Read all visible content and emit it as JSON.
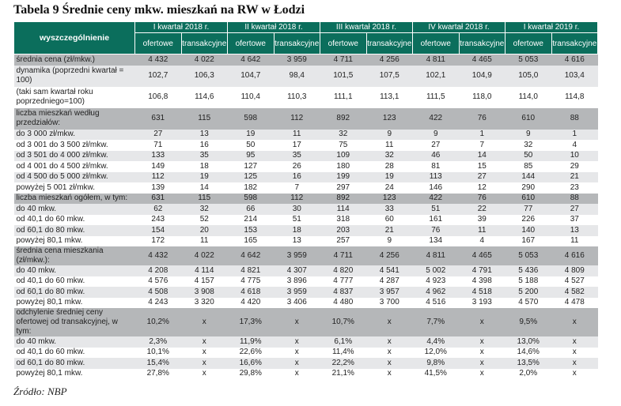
{
  "title": "Tabela 9 Średnie ceny mkw. mieszkań na RW w Łodzi",
  "header": {
    "label": "wyszczególnienie",
    "quarters": [
      "I kwartał 2018 r.",
      "II kwartał 2018 r.",
      "III kwartał 2018 r.",
      "IV kwartał 2018 r.",
      "I kwartał 2019 r."
    ],
    "sub": [
      "ofertowe",
      "transakcyjne"
    ]
  },
  "rows": [
    {
      "label": "średnia cena (zł/mkw.)",
      "style": "dark",
      "values": [
        "4 432",
        "4 022",
        "4 642",
        "3 959",
        "4 711",
        "4 256",
        "4 811",
        "4 465",
        "5 053",
        "4 616"
      ]
    },
    {
      "label": "dynamika (poprzedni kwartał = 100)",
      "style": "light",
      "dbl": true,
      "values": [
        "102,7",
        "106,3",
        "104,7",
        "98,4",
        "101,5",
        "107,5",
        "102,1",
        "104,9",
        "105,0",
        "103,4"
      ]
    },
    {
      "label": "(taki sam kwartał roku poprzedniego=100)",
      "style": "white",
      "dbl": true,
      "values": [
        "106,8",
        "114,6",
        "110,4",
        "110,3",
        "111,1",
        "113,1",
        "111,5",
        "118,0",
        "114,0",
        "114,8"
      ]
    },
    {
      "label": "liczba mieszkań według przedziałów:",
      "style": "dark",
      "dbl": true,
      "values": [
        "631",
        "115",
        "598",
        "112",
        "892",
        "123",
        "422",
        "76",
        "610",
        "88"
      ]
    },
    {
      "label": "do 3 000 zł/mkw.",
      "style": "light",
      "values": [
        "27",
        "13",
        "19",
        "11",
        "32",
        "9",
        "9",
        "1",
        "9",
        "1"
      ]
    },
    {
      "label": "od 3 001 do 3 500 zł/mkw.",
      "style": "white",
      "values": [
        "71",
        "16",
        "50",
        "17",
        "75",
        "11",
        "27",
        "7",
        "32",
        "4"
      ]
    },
    {
      "label": "od 3 501 do 4 000 zł/mkw.",
      "style": "light",
      "values": [
        "133",
        "35",
        "95",
        "35",
        "109",
        "32",
        "46",
        "14",
        "50",
        "10"
      ]
    },
    {
      "label": "od 4 001 do 4 500 zł/mkw.",
      "style": "white",
      "values": [
        "149",
        "18",
        "127",
        "26",
        "180",
        "28",
        "81",
        "15",
        "85",
        "29"
      ]
    },
    {
      "label": "od 4 500 do 5 000 zł/mkw.",
      "style": "light",
      "values": [
        "112",
        "19",
        "125",
        "16",
        "199",
        "19",
        "113",
        "27",
        "144",
        "21"
      ]
    },
    {
      "label": "powyżej 5 001 zł/mkw.",
      "style": "white",
      "values": [
        "139",
        "14",
        "182",
        "7",
        "297",
        "24",
        "146",
        "12",
        "290",
        "23"
      ]
    },
    {
      "label": "liczba mieszkań ogółem, w tym:",
      "style": "dark",
      "values": [
        "631",
        "115",
        "598",
        "112",
        "892",
        "123",
        "422",
        "76",
        "610",
        "88"
      ]
    },
    {
      "label": "do 40 mkw.",
      "style": "light",
      "values": [
        "62",
        "32",
        "66",
        "30",
        "114",
        "33",
        "51",
        "22",
        "77",
        "27"
      ]
    },
    {
      "label": "od 40,1 do 60 mkw.",
      "style": "white",
      "values": [
        "243",
        "52",
        "214",
        "51",
        "318",
        "60",
        "161",
        "39",
        "226",
        "37"
      ]
    },
    {
      "label": "od 60,1 do 80 mkw.",
      "style": "light",
      "values": [
        "154",
        "20",
        "153",
        "18",
        "203",
        "21",
        "76",
        "11",
        "140",
        "13"
      ]
    },
    {
      "label": "powyżej 80,1 mkw.",
      "style": "white",
      "values": [
        "172",
        "11",
        "165",
        "13",
        "257",
        "9",
        "134",
        "4",
        "167",
        "11"
      ]
    },
    {
      "label": "średnia cena mieszkania (zł/mkw.):",
      "style": "dark",
      "values": [
        "4 432",
        "4 022",
        "4 642",
        "3 959",
        "4 711",
        "4 256",
        "4 811",
        "4 465",
        "5 053",
        "4 616"
      ]
    },
    {
      "label": "do 40 mkw.",
      "style": "light",
      "values": [
        "4 208",
        "4 114",
        "4 821",
        "4 307",
        "4 820",
        "4 541",
        "5 002",
        "4 791",
        "5 436",
        "4 809"
      ]
    },
    {
      "label": "od 40,1 do 60 mkw.",
      "style": "white",
      "values": [
        "4 576",
        "4 157",
        "4 775",
        "3 896",
        "4 777",
        "4 287",
        "4 923",
        "4 398",
        "5 188",
        "4 527"
      ]
    },
    {
      "label": "od 60,1 do 80 mkw.",
      "style": "light",
      "values": [
        "4 508",
        "3 908",
        "4 618",
        "3 959",
        "4 837",
        "3 957",
        "4 962",
        "4 518",
        "5 200",
        "4 582"
      ]
    },
    {
      "label": "powyżej 80,1 mkw.",
      "style": "white",
      "values": [
        "4 243",
        "3 320",
        "4 420",
        "3 406",
        "4 480",
        "3 700",
        "4 516",
        "3 193",
        "4 570",
        "4 478"
      ]
    },
    {
      "label": "odchylenie średniej ceny ofertowej od transakcyjnej, w tym:",
      "style": "dark",
      "dbl": true,
      "values": [
        "10,2%",
        "x",
        "17,3%",
        "x",
        "10,7%",
        "x",
        "7,7%",
        "x",
        "9,5%",
        "x"
      ]
    },
    {
      "label": "do 40 mkw.",
      "style": "light",
      "values": [
        "2,3%",
        "x",
        "11,9%",
        "x",
        "6,1%",
        "x",
        "4,4%",
        "x",
        "13,0%",
        "x"
      ]
    },
    {
      "label": "od 40,1 do 60 mkw.",
      "style": "white",
      "values": [
        "10,1%",
        "x",
        "22,6%",
        "x",
        "11,4%",
        "x",
        "12,0%",
        "x",
        "14,6%",
        "x"
      ]
    },
    {
      "label": "od 60,1 do 80 mkw.",
      "style": "light",
      "values": [
        "15,4%",
        "x",
        "16,6%",
        "x",
        "22,2%",
        "x",
        "9,8%",
        "x",
        "13,5%",
        "x"
      ]
    },
    {
      "label": "powyżej 80,1 mkw.",
      "style": "white",
      "values": [
        "27,8%",
        "x",
        "29,8%",
        "x",
        "21,1%",
        "x",
        "41,5%",
        "x",
        "2,0%",
        "x"
      ]
    }
  ],
  "source": "Źródło: NBP",
  "colors": {
    "header": "#0b6e5c",
    "dark_row": "#b5b7b9",
    "light_row": "#e6e7e9"
  }
}
